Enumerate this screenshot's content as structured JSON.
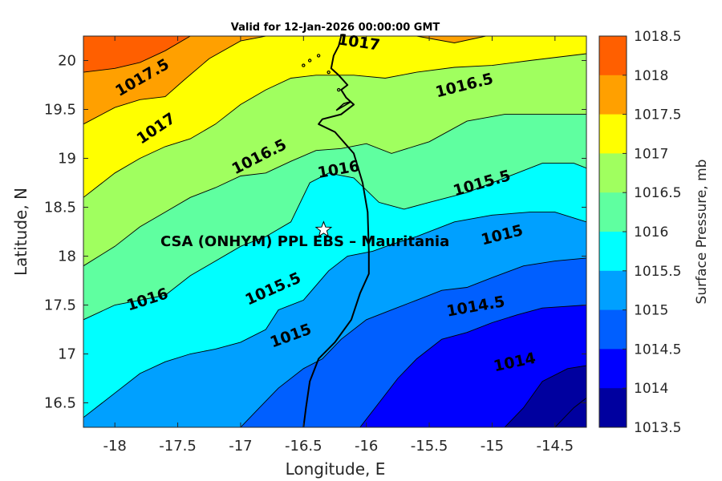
{
  "chart_data": {
    "type": "filled-contour",
    "title": "Valid for 12-Jan-2026 00:00:00 GMT",
    "xlabel": "Longitude, E",
    "ylabel": "Latitude, N",
    "xlim": [
      -18.25,
      -14.25
    ],
    "ylim": [
      16.25,
      20.25
    ],
    "xticks": [
      -18,
      -17.5,
      -17,
      -16.5,
      -16,
      -15.5,
      -15,
      -14.5
    ],
    "xtick_labels": [
      "-18",
      "-17.5",
      "-17",
      "-16.5",
      "-16",
      "-15.5",
      "-15",
      "-14.5"
    ],
    "yticks": [
      16.5,
      17,
      17.5,
      18,
      18.5,
      19,
      19.5,
      20
    ],
    "ytick_labels": [
      "16.5",
      "17",
      "17.5",
      "18",
      "18.5",
      "19",
      "19.5",
      "20"
    ],
    "contour_levels": [
      1013.5,
      1014,
      1014.5,
      1015,
      1015.5,
      1016,
      1016.5,
      1017,
      1017.5,
      1018,
      1018.5
    ],
    "band_colors": [
      "#00009f",
      "#0000ff",
      "#005fff",
      "#00a0ff",
      "#00ffff",
      "#5fffa0",
      "#a0ff5f",
      "#ffff00",
      "#ffa000",
      "#ff5f00"
    ],
    "contour_label_values": [
      {
        "text": "1017",
        "lon": -16.06,
        "lat": 20.18,
        "angle": 8
      },
      {
        "text": "1017.5",
        "lon": -17.78,
        "lat": 19.82,
        "angle": -30
      },
      {
        "text": "1016.5",
        "lon": -15.22,
        "lat": 19.74,
        "angle": -14
      },
      {
        "text": "1017",
        "lon": -17.67,
        "lat": 19.3,
        "angle": -34
      },
      {
        "text": "1016.5",
        "lon": -16.85,
        "lat": 19.01,
        "angle": -27
      },
      {
        "text": "1016",
        "lon": -16.22,
        "lat": 18.88,
        "angle": -10
      },
      {
        "text": "1015.5",
        "lon": -15.08,
        "lat": 18.74,
        "angle": -16
      },
      {
        "text": "1015",
        "lon": -14.92,
        "lat": 18.21,
        "angle": -14
      },
      {
        "text": "1016",
        "lon": -17.74,
        "lat": 17.55,
        "angle": -18
      },
      {
        "text": "1015.5",
        "lon": -16.74,
        "lat": 17.66,
        "angle": -24
      },
      {
        "text": "1015",
        "lon": -16.6,
        "lat": 17.18,
        "angle": -20
      },
      {
        "text": "1014.5",
        "lon": -15.13,
        "lat": 17.48,
        "angle": -10
      },
      {
        "text": "1014",
        "lon": -14.82,
        "lat": 16.91,
        "angle": -12
      }
    ],
    "isolines": [
      {
        "level": 1017.5,
        "points": [
          [
            -18.25,
            19.88
          ],
          [
            -18.0,
            19.92
          ],
          [
            -17.8,
            19.98
          ],
          [
            -17.6,
            20.1
          ],
          [
            -17.4,
            20.25
          ]
        ]
      },
      {
        "level": 1017,
        "points": [
          [
            -18.25,
            19.35
          ],
          [
            -18.0,
            19.52
          ],
          [
            -17.8,
            19.6
          ],
          [
            -17.6,
            19.63
          ],
          [
            -17.45,
            19.8
          ],
          [
            -17.25,
            20.02
          ],
          [
            -17.0,
            20.2
          ],
          [
            -16.8,
            20.25
          ],
          [
            -16.0,
            20.25
          ],
          [
            -15.6,
            20.25
          ],
          [
            -15.3,
            20.18
          ],
          [
            -15.05,
            20.25
          ]
        ]
      },
      {
        "level": 1016.5,
        "points": [
          [
            -18.25,
            18.6
          ],
          [
            -18.0,
            18.85
          ],
          [
            -17.8,
            19.0
          ],
          [
            -17.6,
            19.12
          ],
          [
            -17.4,
            19.2
          ],
          [
            -17.2,
            19.35
          ],
          [
            -17.0,
            19.55
          ],
          [
            -16.8,
            19.7
          ],
          [
            -16.6,
            19.82
          ],
          [
            -16.4,
            19.85
          ],
          [
            -16.1,
            19.85
          ],
          [
            -15.85,
            19.82
          ],
          [
            -15.6,
            19.88
          ],
          [
            -15.3,
            19.93
          ],
          [
            -15.0,
            19.95
          ],
          [
            -14.7,
            20.0
          ],
          [
            -14.25,
            20.07
          ]
        ]
      },
      {
        "level": 1016,
        "points": [
          [
            -18.25,
            17.9
          ],
          [
            -18.0,
            18.1
          ],
          [
            -17.8,
            18.3
          ],
          [
            -17.6,
            18.45
          ],
          [
            -17.4,
            18.6
          ],
          [
            -17.2,
            18.7
          ],
          [
            -17.0,
            18.82
          ],
          [
            -16.8,
            18.85
          ],
          [
            -16.6,
            18.97
          ],
          [
            -16.4,
            19.08
          ],
          [
            -16.2,
            19.1
          ],
          [
            -16.0,
            19.15
          ],
          [
            -15.8,
            19.05
          ],
          [
            -15.5,
            19.17
          ],
          [
            -15.2,
            19.38
          ],
          [
            -14.9,
            19.45
          ],
          [
            -14.25,
            19.45
          ]
        ]
      },
      {
        "level": 1015.5,
        "points": [
          [
            -18.25,
            17.35
          ],
          [
            -18.0,
            17.5
          ],
          [
            -17.8,
            17.55
          ],
          [
            -17.6,
            17.6
          ],
          [
            -17.4,
            17.8
          ],
          [
            -17.2,
            17.95
          ],
          [
            -17.0,
            18.1
          ],
          [
            -16.8,
            18.2
          ],
          [
            -16.6,
            18.35
          ],
          [
            -16.45,
            18.75
          ],
          [
            -16.3,
            18.85
          ],
          [
            -16.1,
            18.8
          ],
          [
            -15.9,
            18.55
          ],
          [
            -15.7,
            18.48
          ],
          [
            -15.5,
            18.55
          ],
          [
            -15.2,
            18.65
          ],
          [
            -14.9,
            18.8
          ],
          [
            -14.6,
            18.95
          ],
          [
            -14.35,
            18.95
          ],
          [
            -14.25,
            18.9
          ]
        ]
      },
      {
        "level": 1015,
        "points": [
          [
            -18.25,
            16.35
          ],
          [
            -18.0,
            16.6
          ],
          [
            -17.8,
            16.8
          ],
          [
            -17.6,
            16.92
          ],
          [
            -17.4,
            17.0
          ],
          [
            -17.2,
            17.05
          ],
          [
            -17.0,
            17.12
          ],
          [
            -16.8,
            17.25
          ],
          [
            -16.7,
            17.45
          ],
          [
            -16.5,
            17.55
          ],
          [
            -16.3,
            17.85
          ],
          [
            -16.15,
            18.0
          ],
          [
            -15.95,
            18.05
          ],
          [
            -15.8,
            18.12
          ],
          [
            -15.6,
            18.2
          ],
          [
            -15.3,
            18.35
          ],
          [
            -15.0,
            18.42
          ],
          [
            -14.7,
            18.45
          ],
          [
            -14.5,
            18.45
          ],
          [
            -14.25,
            18.35
          ]
        ]
      },
      {
        "level": 1014.5,
        "points": [
          [
            -17.0,
            16.25
          ],
          [
            -16.85,
            16.45
          ],
          [
            -16.7,
            16.65
          ],
          [
            -16.5,
            16.85
          ],
          [
            -16.35,
            16.95
          ],
          [
            -16.2,
            17.15
          ],
          [
            -16.0,
            17.35
          ],
          [
            -15.8,
            17.45
          ],
          [
            -15.6,
            17.55
          ],
          [
            -15.4,
            17.65
          ],
          [
            -15.2,
            17.68
          ],
          [
            -15.0,
            17.78
          ],
          [
            -14.75,
            17.9
          ],
          [
            -14.5,
            17.95
          ],
          [
            -14.25,
            17.98
          ]
        ]
      },
      {
        "level": 1014,
        "points": [
          [
            -16.05,
            16.25
          ],
          [
            -15.9,
            16.5
          ],
          [
            -15.75,
            16.75
          ],
          [
            -15.6,
            16.95
          ],
          [
            -15.4,
            17.15
          ],
          [
            -15.2,
            17.22
          ],
          [
            -15.0,
            17.32
          ],
          [
            -14.8,
            17.4
          ],
          [
            -14.6,
            17.47
          ],
          [
            -14.25,
            17.5
          ]
        ]
      },
      {
        "level": 1013.5,
        "points": [
          [
            -14.9,
            16.25
          ],
          [
            -14.75,
            16.45
          ],
          [
            -14.6,
            16.72
          ],
          [
            -14.4,
            16.85
          ],
          [
            -14.25,
            16.88
          ]
        ]
      },
      {
        "level": 1013.5,
        "points": [
          [
            -14.5,
            16.25
          ],
          [
            -14.35,
            16.45
          ],
          [
            -14.25,
            16.55
          ]
        ]
      }
    ],
    "station": {
      "name": "CSA (ONHYM) PPL EBS  – Mauritania",
      "lon": -16.34,
      "lat": 18.27
    },
    "colorbar": {
      "label": "Surface Pressure, mb",
      "tick_labels": [
        "1018.5",
        "1018",
        "1017.5",
        "1017",
        "1016.5",
        "1016",
        "1015.5",
        "1015",
        "1014.5",
        "1014",
        "1013.5"
      ]
    },
    "coastline": [
      [
        -16.5,
        16.25
      ],
      [
        -16.48,
        16.45
      ],
      [
        -16.45,
        16.72
      ],
      [
        -16.38,
        16.95
      ],
      [
        -16.25,
        17.12
      ],
      [
        -16.12,
        17.35
      ],
      [
        -16.05,
        17.62
      ],
      [
        -15.98,
        17.82
      ],
      [
        -15.98,
        18.05
      ],
      [
        -15.99,
        18.45
      ],
      [
        -16.03,
        18.75
      ],
      [
        -16.1,
        19.05
      ],
      [
        -16.25,
        19.27
      ],
      [
        -16.38,
        19.35
      ],
      [
        -16.35,
        19.4
      ],
      [
        -16.2,
        19.45
      ],
      [
        -16.1,
        19.55
      ],
      [
        -16.16,
        19.62
      ],
      [
        -16.2,
        19.7
      ],
      [
        -16.15,
        19.75
      ],
      [
        -16.22,
        19.85
      ],
      [
        -16.28,
        19.92
      ],
      [
        -16.26,
        20.05
      ],
      [
        -16.22,
        20.15
      ],
      [
        -16.2,
        20.25
      ]
    ],
    "island": [
      [
        -16.24,
        19.49
      ],
      [
        -16.16,
        19.55
      ],
      [
        -16.12,
        19.58
      ],
      [
        -16.18,
        19.56
      ],
      [
        -16.24,
        19.49
      ]
    ]
  }
}
